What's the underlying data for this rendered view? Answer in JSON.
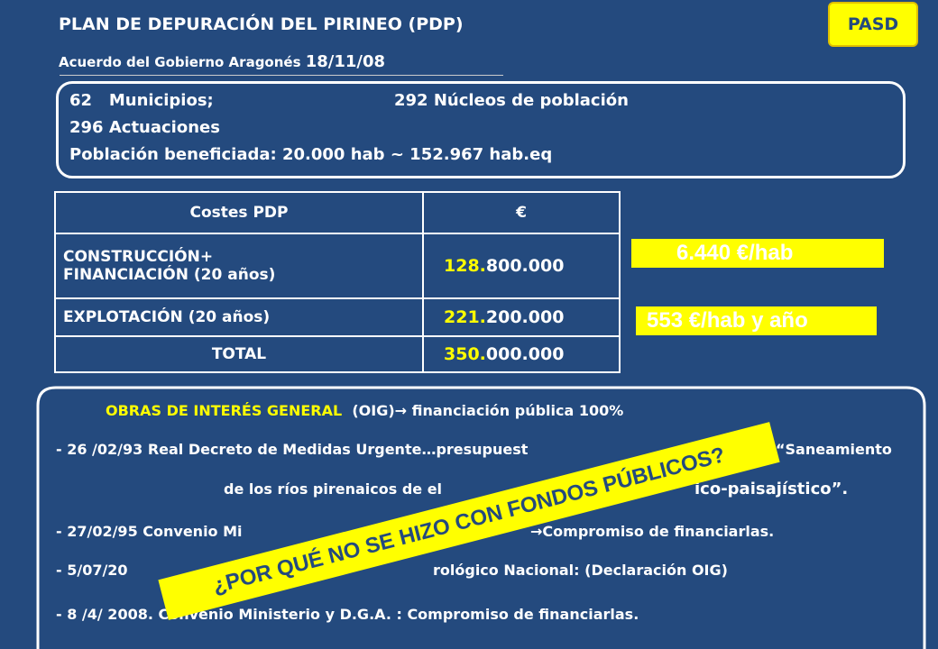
{
  "header": {
    "title": "PLAN DE DEPURACIÓN DEL PIRINEO (PDP)",
    "subtitle_a": "Acuerdo del Gobierno Aragonés",
    "subtitle_b": "18/11/08",
    "badge": "PASD"
  },
  "summary": {
    "l1a": "62",
    "l1b": "Municipios;",
    "l1c": "292 Núcleos de población",
    "l2": "296 Actuaciones",
    "l3": "Población beneficiada: 20.000 hab ~ 152.967 hab.eq"
  },
  "table": {
    "header": [
      "Costes PDP",
      "€"
    ],
    "rows": [
      {
        "label": "CONSTRUCCIÓN+",
        "label2": "FINANCIACIÓN  (20 años)",
        "hi": "128.",
        "rest": "800.000"
      },
      {
        "label": "EXPLOTACIÓN  (20 años)",
        "hi": "221.",
        "rest": "200.000"
      },
      {
        "label": "TOTAL",
        "hi": "350.",
        "rest": "000.000"
      }
    ]
  },
  "ratios": [
    "6.440 €/hab",
    "553  €/hab y año"
  ],
  "oig": {
    "title": "OBRAS DE INTERÉS GENERAL",
    "paren": "(OIG)",
    "arrow": "→",
    "rest": "financiación pública 100%",
    "lines": [
      [
        "- 26 /02/93 Real Decreto  de Medidas Urgente…presupuest",
        "“Saneamiento"
      ],
      [
        "de los ríos pirenaicos de el",
        "ico-paisajístico”."
      ],
      [
        "-  27/02/95 Convenio Mi",
        "→Compromiso de financiarlas."
      ],
      [
        "-  5/07/20",
        "rológico Nacional: (Declaración OIG)"
      ],
      [
        "-  8 /4/ 2008. Convenio  Ministerio y D.G.A. : Compromiso de financiarlas.",
        ""
      ]
    ]
  },
  "banner": "¿POR QUÉ NO SE HIZO CON FONDOS PÚBLICOS?"
}
